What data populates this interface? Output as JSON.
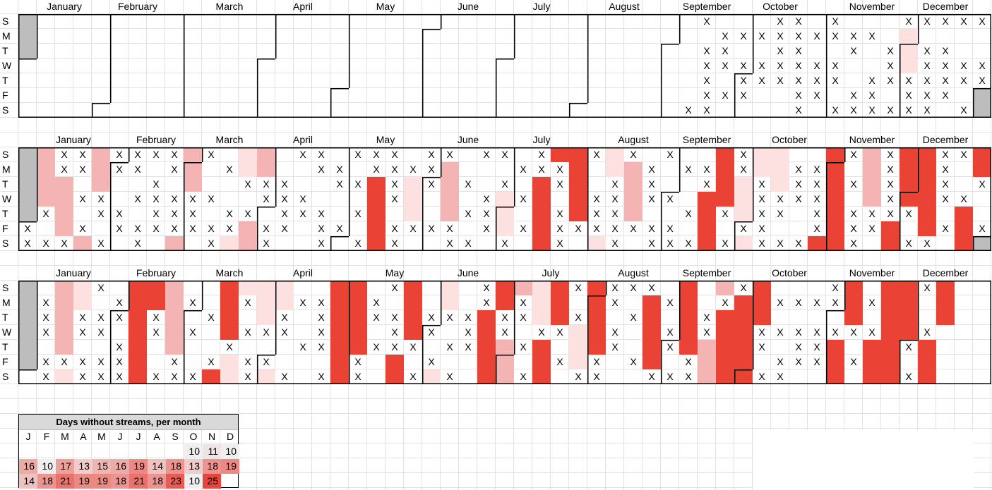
{
  "weekday_labels": [
    "S",
    "M",
    "T",
    "W",
    "T",
    "F",
    "S"
  ],
  "month_names": [
    "January",
    "February",
    "March",
    "April",
    "May",
    "June",
    "July",
    "August",
    "September",
    "October",
    "November",
    "December"
  ],
  "colors": {
    "red": "#ea4335",
    "pink": "#f4b4b4",
    "light_pink": "#fde0e0",
    "grey": "#bdbdbd"
  },
  "cell_legend": {
    "X": "marked day",
    "r": "red",
    "p": "pink",
    "l": "light pink",
    "g": "outside year",
    ".": "empty"
  },
  "years": [
    {
      "jan1_weekday": 3,
      "leap": true,
      "rows": [
        "g......... .......... .......... .......X.. .XX.X...XX XXX",
        "g......... .......... .......... ........XX XXXXXXX.l. ...",
        "g......... .......... .......... .......XX. .XX..X.XlX X..",
        ".......... .......... .......... .......XXX XXXXX..XlX XXX",
        ".......... .......... .......... .......X.X XXXXX.XXXX XXX",
        ".......... .......... .......... .......XXX ..XX.XX.XX X.g",
        ".......... .......... .......... ......XX.. ..X.XXXXXX .Xg"
      ]
    },
    {
      "jan1_weekday": 5,
      "leap": false,
      "rows": [
        "gpXXpXXXXp X.lp.XX.XX X.XX.XX.Xr rXlX.X..rX ll..rXpXrr XXr",
        "gpXXpXX.Xp .Xlp..XX.X XXXp...XXX r.lpX.XXrX llXXr.pXrr X.r",
        "gpp.p..X.p ..XXX..XXr XlXpX.X.rX r.XpX..Xrl XlXXrXpXrr X.X",
        "gppXX.XXXX X..XXX...r Xl.p.XlXr. rXXpXX.rrl XXXXr.pXrr XX.",
        "gXp.XX.XXX .XX.XXX.Xr .l.pXXl.rX rXXp..XrXl XX.XrXXXXr .r.",
        "X.pX.XXXXX XXpXX.XX.r XXXX.XlXrX XXXXXX.r.X X..XrXXr.r XrX",
        "XXXpX.X.p. XlpX..X.Xr X..XX.X.rX .lX.XXXrXl XXXrrX.rXX .rg"
      ]
    },
    {
      "jan1_weekday": 6,
      "leap": false,
      "rows": [
        "g.plX.rrp. .rlll..rr. Xr.l.Xrplr XrXXX.r.pX r...Xr.rrX r..",
        "gXpl.XrrpX .rXllXXrrX .r.l.XrXlr .rX.rXr.Xr rXXXXrXrr. r..",
        "gXpXXXrXp. Xr.lX.XrrX XrXXXrXXlr Xr.Xr.rXrr r....r.rr. r..",
        "gXpXX.rXpX .rXXX.Xrr. XrX.XrX.XX lrX.rXrXrr XXXXXXXrrX ...",
        "g.p..Xr.p. .X...XXrrX XX.XXrpXr. lrX.rXrprr X.XXr.rrXr ...",
        "gXXXXXr.X. XlXX...rX. r.X..rp.rX lX.Xr.Xprr .XXXrXrr.r ...",
        ".XlXXXrXXX rlXlX.XrX. rXlX.rpXr. XX..XXXprr XX..r.rrXr ..."
      ]
    }
  ],
  "summary": {
    "title": "Days without streams, per month",
    "month_initials": [
      "J",
      "F",
      "M",
      "A",
      "M",
      "J",
      "J",
      "A",
      "S",
      "O",
      "N",
      "D"
    ],
    "rows": [
      [
        null,
        null,
        null,
        null,
        null,
        null,
        null,
        null,
        null,
        10,
        11,
        10
      ],
      [
        16,
        10,
        17,
        13,
        15,
        16,
        19,
        14,
        18,
        13,
        18,
        19
      ],
      [
        14,
        18,
        21,
        19,
        19,
        18,
        21,
        18,
        23,
        10,
        25,
        null
      ]
    ],
    "scale_min": 10,
    "scale_max": 25
  }
}
